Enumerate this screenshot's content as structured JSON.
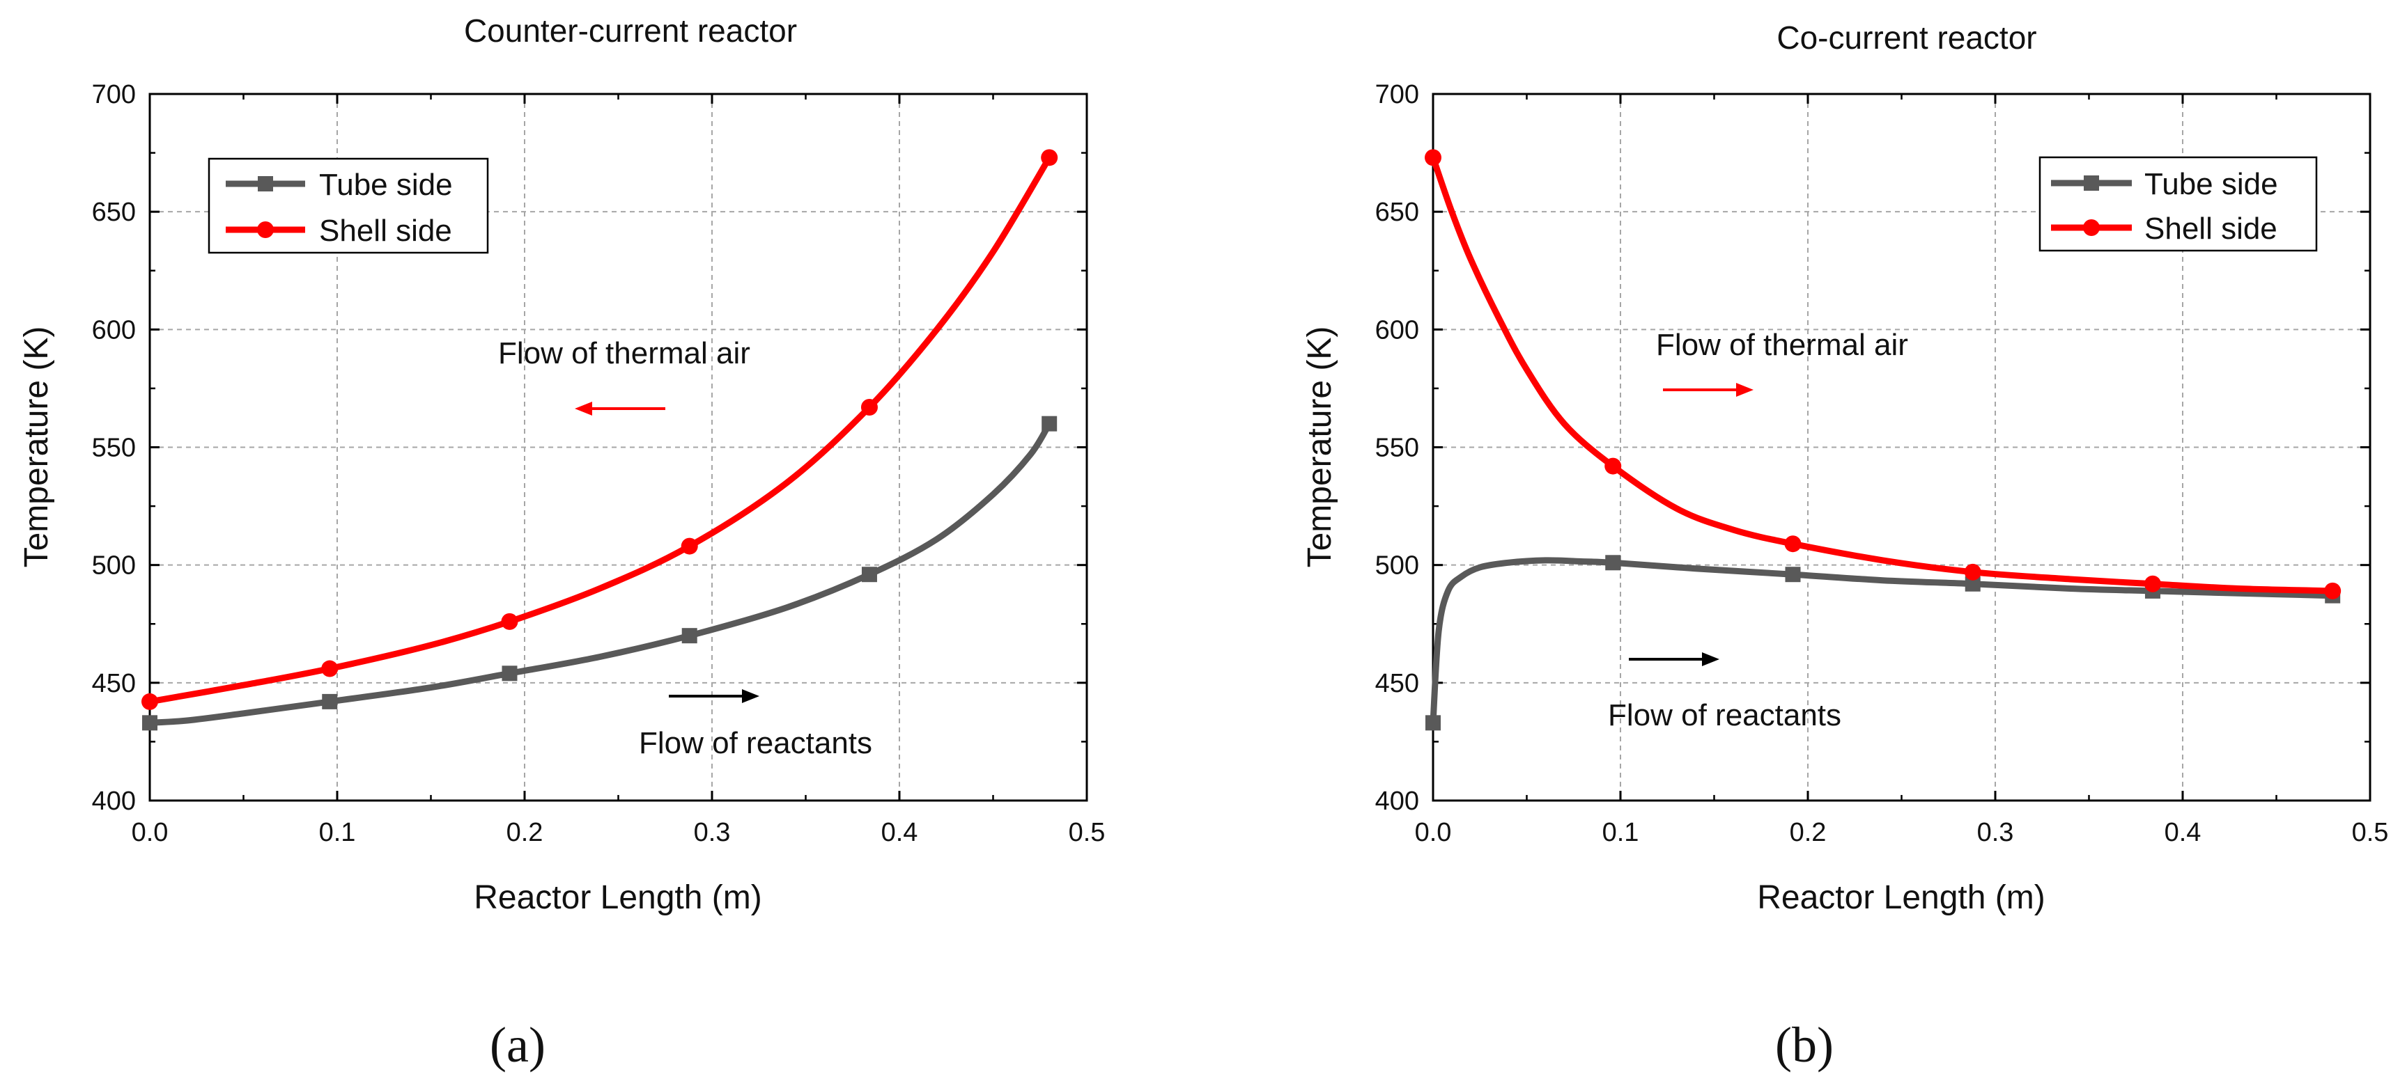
{
  "chart_data": [
    {
      "type": "line",
      "title": "Counter-current reactor",
      "xlabel": "Reactor Length (m)",
      "ylabel": "Temperature (K)",
      "xlim": [
        0.0,
        0.5
      ],
      "ylim": [
        400,
        700
      ],
      "xticks": [
        "0.0",
        "0.1",
        "0.2",
        "0.3",
        "0.4",
        "0.5"
      ],
      "yticks": [
        "400",
        "450",
        "500",
        "550",
        "600",
        "650",
        "700"
      ],
      "grid": true,
      "legend_position": "top-left",
      "series": [
        {
          "name": "Tube side",
          "color": "#595959",
          "marker": "square",
          "curve": [
            [
              0.0,
              433
            ],
            [
              0.02,
              434
            ],
            [
              0.05,
              437
            ],
            [
              0.096,
              442
            ],
            [
              0.15,
              448
            ],
            [
              0.192,
              454
            ],
            [
              0.24,
              461
            ],
            [
              0.288,
              470
            ],
            [
              0.34,
              482
            ],
            [
              0.384,
              496
            ],
            [
              0.42,
              511
            ],
            [
              0.45,
              530
            ],
            [
              0.47,
              547
            ],
            [
              0.48,
              560
            ]
          ],
          "markers": [
            [
              0.0,
              433
            ],
            [
              0.096,
              442
            ],
            [
              0.192,
              454
            ],
            [
              0.288,
              470
            ],
            [
              0.384,
              496
            ],
            [
              0.48,
              560
            ]
          ]
        },
        {
          "name": "Shell side",
          "color": "#ff0000",
          "marker": "circle",
          "curve": [
            [
              0.0,
              442
            ],
            [
              0.05,
              449
            ],
            [
              0.096,
              456
            ],
            [
              0.15,
              466
            ],
            [
              0.192,
              476
            ],
            [
              0.24,
              490
            ],
            [
              0.288,
              508
            ],
            [
              0.34,
              535
            ],
            [
              0.384,
              567
            ],
            [
              0.42,
              600
            ],
            [
              0.45,
              633
            ],
            [
              0.48,
              673
            ]
          ],
          "markers": [
            [
              0.0,
              442
            ],
            [
              0.096,
              456
            ],
            [
              0.192,
              476
            ],
            [
              0.288,
              508
            ],
            [
              0.384,
              567
            ],
            [
              0.48,
              673
            ]
          ]
        }
      ],
      "annotations": [
        {
          "text": "Flow of thermal air",
          "arrow_direction": "left",
          "arrow_color": "#ff0000"
        },
        {
          "text": "Flow of reactants",
          "arrow_direction": "right",
          "arrow_color": "#000000"
        }
      ],
      "panel_label": "(a)"
    },
    {
      "type": "line",
      "title": "Co-current reactor",
      "xlabel": "Reactor Length (m)",
      "ylabel": "Temperature (K)",
      "xlim": [
        0.0,
        0.5
      ],
      "ylim": [
        400,
        700
      ],
      "xticks": [
        "0.0",
        "0.1",
        "0.2",
        "0.3",
        "0.4",
        "0.5"
      ],
      "yticks": [
        "400",
        "450",
        "500",
        "550",
        "600",
        "650",
        "700"
      ],
      "grid": true,
      "legend_position": "top-right",
      "series": [
        {
          "name": "Tube side",
          "color": "#595959",
          "marker": "square",
          "curve": [
            [
              0.0,
              433
            ],
            [
              0.003,
              472
            ],
            [
              0.008,
              489
            ],
            [
              0.015,
              495
            ],
            [
              0.025,
              499
            ],
            [
              0.04,
              501
            ],
            [
              0.06,
              502
            ],
            [
              0.08,
              501.5
            ],
            [
              0.096,
              501
            ],
            [
              0.14,
              498.5
            ],
            [
              0.192,
              496
            ],
            [
              0.24,
              493.5
            ],
            [
              0.288,
              492
            ],
            [
              0.34,
              490
            ],
            [
              0.384,
              489
            ],
            [
              0.43,
              488
            ],
            [
              0.48,
              487
            ]
          ],
          "markers": [
            [
              0.0,
              433
            ],
            [
              0.096,
              501
            ],
            [
              0.192,
              496
            ],
            [
              0.288,
              492
            ],
            [
              0.384,
              489
            ],
            [
              0.48,
              487
            ]
          ]
        },
        {
          "name": "Shell side",
          "color": "#ff0000",
          "marker": "circle",
          "curve": [
            [
              0.0,
              673
            ],
            [
              0.01,
              650
            ],
            [
              0.02,
              630
            ],
            [
              0.035,
              605
            ],
            [
              0.05,
              583
            ],
            [
              0.07,
              560
            ],
            [
              0.096,
              542
            ],
            [
              0.13,
              524
            ],
            [
              0.16,
              515
            ],
            [
              0.192,
              509
            ],
            [
              0.24,
              502
            ],
            [
              0.288,
              497
            ],
            [
              0.34,
              494
            ],
            [
              0.384,
              492
            ],
            [
              0.43,
              490
            ],
            [
              0.48,
              489
            ]
          ],
          "markers": [
            [
              0.0,
              673
            ],
            [
              0.096,
              542
            ],
            [
              0.192,
              509
            ],
            [
              0.288,
              497
            ],
            [
              0.384,
              492
            ],
            [
              0.48,
              489
            ]
          ]
        }
      ],
      "annotations": [
        {
          "text": "Flow of thermal air",
          "arrow_direction": "right",
          "arrow_color": "#ff0000"
        },
        {
          "text": "Flow of reactants",
          "arrow_direction": "right",
          "arrow_color": "#000000"
        }
      ],
      "panel_label": "(b)"
    }
  ]
}
